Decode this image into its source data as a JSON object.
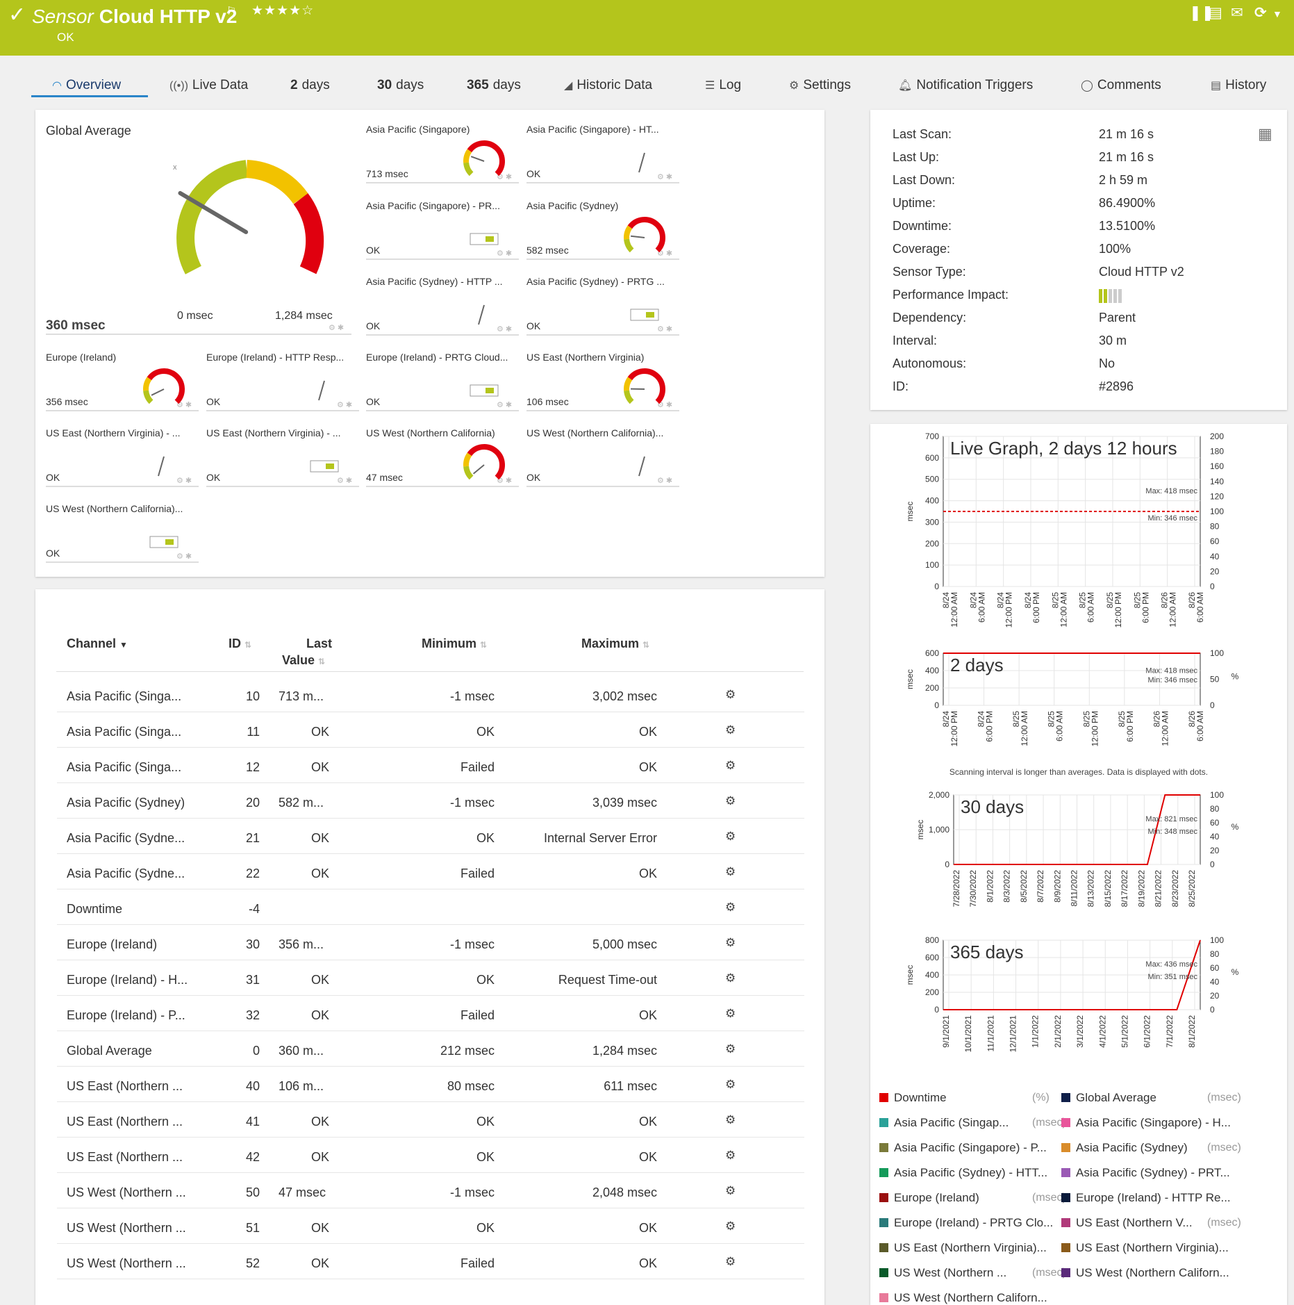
{
  "header": {
    "label": "Sensor",
    "title": "Cloud HTTP v2",
    "status": "OK",
    "stars": "★★★★☆",
    "accent": "#b4c51c"
  },
  "tabs": [
    {
      "label": "Overview",
      "icon": "gauge-icon"
    },
    {
      "label": "Live Data",
      "icon": "broadcast-icon"
    },
    {
      "num": "2",
      "label": "days"
    },
    {
      "num": "30",
      "label": "days"
    },
    {
      "num": "365",
      "label": "days"
    },
    {
      "label": "Historic Data",
      "icon": "area-chart-icon"
    },
    {
      "label": "Log",
      "icon": "list-icon"
    },
    {
      "label": "Settings",
      "icon": "gear-icon"
    },
    {
      "label": "Notification Triggers",
      "icon": "bell-icon"
    },
    {
      "label": "Comments",
      "icon": "comment-icon"
    },
    {
      "label": "History",
      "icon": "history-icon"
    }
  ],
  "global": {
    "title": "Global Average",
    "value": "360 msec",
    "min_label": "0 msec",
    "max_label": "1,284 msec",
    "level": 0.28
  },
  "gauges": [
    {
      "title": "Asia Pacific (Singapore)",
      "value": "713 msec",
      "kind": "gauge",
      "level": 0.24
    },
    {
      "title": "Asia Pacific (Singapore) - HT...",
      "value": "OK",
      "kind": "line"
    },
    {
      "title": "Asia Pacific (Singapore) - PR...",
      "value": "OK",
      "kind": "toggle"
    },
    {
      "title": "Asia Pacific (Sydney)",
      "value": "582 msec",
      "kind": "gauge",
      "level": 0.19
    },
    {
      "title": "Asia Pacific (Sydney) - HTTP ...",
      "value": "OK",
      "kind": "line"
    },
    {
      "title": "Asia Pacific (Sydney) - PRTG ...",
      "value": "OK",
      "kind": "toggle"
    },
    {
      "title": "Europe (Ireland)",
      "value": "356 msec",
      "kind": "gauge",
      "level": 0.07
    },
    {
      "title": "Europe (Ireland) - HTTP Resp...",
      "value": "OK",
      "kind": "line"
    },
    {
      "title": "Europe (Ireland) - PRTG Cloud...",
      "value": "OK",
      "kind": "toggle"
    },
    {
      "title": "US East (Northern Virginia)",
      "value": "106 msec",
      "kind": "gauge",
      "level": 0.17
    },
    {
      "title": "US East (Northern Virginia) - ...",
      "value": "OK",
      "kind": "line"
    },
    {
      "title": "US East (Northern Virginia) - ...",
      "value": "OK",
      "kind": "toggle"
    },
    {
      "title": "US West (Northern California)",
      "value": "47 msec",
      "kind": "gauge",
      "level": 0.02
    },
    {
      "title": "US West (Northern California)...",
      "value": "OK",
      "kind": "line"
    },
    {
      "title": "US West (Northern California)...",
      "value": "OK",
      "kind": "toggle"
    }
  ],
  "table": {
    "headers": {
      "channel": "Channel",
      "id": "ID",
      "last": "Last",
      "value": "Value",
      "min": "Minimum",
      "max": "Maximum"
    },
    "rows": [
      {
        "channel": "Asia Pacific (Singa...",
        "id": "10",
        "last": "713 m...",
        "min": "-1 msec",
        "max": "3,002 msec"
      },
      {
        "channel": "Asia Pacific (Singa...",
        "id": "11",
        "last": "OK",
        "min": "OK",
        "max": "OK"
      },
      {
        "channel": "Asia Pacific (Singa...",
        "id": "12",
        "last": "OK",
        "min": "Failed",
        "max": "OK"
      },
      {
        "channel": "Asia Pacific (Sydney)",
        "id": "20",
        "last": "582 m...",
        "min": "-1 msec",
        "max": "3,039 msec"
      },
      {
        "channel": "Asia Pacific (Sydne...",
        "id": "21",
        "last": "OK",
        "min": "OK",
        "max": "Internal Server Error"
      },
      {
        "channel": "Asia Pacific (Sydne...",
        "id": "22",
        "last": "OK",
        "min": "Failed",
        "max": "OK"
      },
      {
        "channel": "Downtime",
        "id": "-4",
        "last": "",
        "min": "",
        "max": ""
      },
      {
        "channel": "Europe (Ireland)",
        "id": "30",
        "last": "356 m...",
        "min": "-1 msec",
        "max": "5,000 msec"
      },
      {
        "channel": "Europe (Ireland) - H...",
        "id": "31",
        "last": "OK",
        "min": "OK",
        "max": "Request Time-out"
      },
      {
        "channel": "Europe (Ireland) - P...",
        "id": "32",
        "last": "OK",
        "min": "Failed",
        "max": "OK"
      },
      {
        "channel": "Global Average",
        "id": "0",
        "last": "360 m...",
        "min": "212 msec",
        "max": "1,284 msec"
      },
      {
        "channel": "US East (Northern ...",
        "id": "40",
        "last": "106 m...",
        "min": "80 msec",
        "max": "611 msec"
      },
      {
        "channel": "US East (Northern ...",
        "id": "41",
        "last": "OK",
        "min": "OK",
        "max": "OK"
      },
      {
        "channel": "US East (Northern ...",
        "id": "42",
        "last": "OK",
        "min": "OK",
        "max": "OK"
      },
      {
        "channel": "US West (Northern ...",
        "id": "50",
        "last": "47 msec",
        "min": "-1 msec",
        "max": "2,048 msec"
      },
      {
        "channel": "US West (Northern ...",
        "id": "51",
        "last": "OK",
        "min": "OK",
        "max": "OK"
      },
      {
        "channel": "US West (Northern ...",
        "id": "52",
        "last": "OK",
        "min": "Failed",
        "max": "OK"
      }
    ]
  },
  "details": [
    {
      "label": "Last Scan:",
      "value": "21 m 16 s"
    },
    {
      "label": "Last Up:",
      "value": "21 m 16 s"
    },
    {
      "label": "Last Down:",
      "value": "2 h 59 m"
    },
    {
      "label": "Uptime:",
      "value": "86.4900%"
    },
    {
      "label": "Downtime:",
      "value": "13.5100%"
    },
    {
      "label": "Coverage:",
      "value": "100%"
    },
    {
      "label": "Sensor Type:",
      "value": "Cloud HTTP v2"
    },
    {
      "label": "Performance Impact:",
      "value": ""
    },
    {
      "label": "Dependency:",
      "value": "Parent"
    },
    {
      "label": "Interval:",
      "value": "30 m"
    },
    {
      "label": "Autonomous:",
      "value": "No"
    },
    {
      "label": "ID:",
      "value": "#2896"
    }
  ],
  "chart_data": [
    {
      "type": "line",
      "title": "Live Graph, 2 days 12 hours",
      "ylabel": "msec",
      "ylim": [
        0,
        700
      ],
      "yticks": [
        "700",
        "600",
        "500",
        "400",
        "300",
        "200",
        "100",
        "0"
      ],
      "y2lim": [
        0,
        200
      ],
      "y2ticks": [
        "200",
        "180",
        "160",
        "140",
        "120",
        "100",
        "80",
        "60",
        "40",
        "20",
        "0"
      ],
      "xticks": [
        "8/24 12:00 AM",
        "8/24 6:00 AM",
        "8/24 12:00 PM",
        "8/24 6:00 PM",
        "8/25 12:00 AM",
        "8/25 6:00 AM",
        "8/25 12:00 PM",
        "8/25 6:00 PM",
        "8/26 12:00 AM",
        "8/26 6:00 AM"
      ],
      "annotations": [
        "Max: 418 msec",
        "Min: 346 msec"
      ],
      "series": [
        {
          "name": "Downtime",
          "values": [
            100,
            100
          ]
        }
      ]
    },
    {
      "type": "line",
      "title": "2 days",
      "ylabel": "msec",
      "ylim": [
        0,
        600
      ],
      "yticks": [
        "600",
        "400",
        "200",
        "0"
      ],
      "y2lim": [
        0,
        100
      ],
      "y2ticks": [
        "100",
        "50",
        "0"
      ],
      "y2label": "%",
      "xticks": [
        "8/24 12:00 PM",
        "8/24 6:00 PM",
        "8/25 12:00 AM",
        "8/25 6:00 AM",
        "8/25 12:00 PM",
        "8/25 6:00 PM",
        "8/26 12:00 AM",
        "8/26 6:00 AM"
      ],
      "annotations": [
        "Max: 418 msec",
        "Min: 346 msec"
      ],
      "note": "Scanning interval is longer than averages. Data is displayed with dots.",
      "series": [
        {
          "name": "Downtime",
          "values": [
            100,
            100
          ]
        }
      ]
    },
    {
      "type": "line",
      "title": "30 days",
      "ylabel": "msec",
      "ylim": [
        0,
        2000
      ],
      "yticks": [
        "2,000",
        "1,000",
        "0"
      ],
      "y2lim": [
        0,
        100
      ],
      "y2ticks": [
        "100",
        "80",
        "60",
        "40",
        "20",
        "0"
      ],
      "y2label": "%",
      "xticks": [
        "7/28/2022",
        "7/30/2022",
        "8/1/2022",
        "8/3/2022",
        "8/5/2022",
        "8/7/2022",
        "8/9/2022",
        "8/11/2022",
        "8/13/2022",
        "8/15/2022",
        "8/17/2022",
        "8/19/2022",
        "8/21/2022",
        "8/23/2022",
        "8/25/2022"
      ],
      "annotations": [
        "Max: 821 msec",
        "Min: 348 msec"
      ],
      "series": [
        {
          "name": "Downtime",
          "values": [
            0,
            0,
            0,
            0,
            0,
            0,
            0,
            0,
            0,
            0,
            0,
            0,
            100,
            100,
            100
          ]
        }
      ]
    },
    {
      "type": "line",
      "title": "365 days",
      "ylabel": "msec",
      "ylim": [
        0,
        800
      ],
      "yticks": [
        "800",
        "600",
        "400",
        "200",
        "0"
      ],
      "y2lim": [
        0,
        100
      ],
      "y2ticks": [
        "100",
        "80",
        "60",
        "40",
        "20",
        "0"
      ],
      "y2label": "%",
      "xticks": [
        "9/1/2021",
        "10/1/2021",
        "11/1/2021",
        "12/1/2021",
        "1/1/2022",
        "2/1/2022",
        "3/1/2022",
        "4/1/2022",
        "5/1/2022",
        "6/1/2022",
        "7/1/2022",
        "8/1/2022"
      ],
      "annotations": [
        "Max: 436 msec",
        "Min: 351 msec"
      ],
      "series": [
        {
          "name": "Downtime",
          "values": [
            0,
            0,
            0,
            0,
            0,
            0,
            0,
            0,
            0,
            0,
            0,
            100
          ]
        }
      ]
    }
  ],
  "legend": [
    {
      "name": "Downtime",
      "unit": "(%)",
      "color": "#e00000"
    },
    {
      "name": "Global Average",
      "unit": "(msec)",
      "color": "#10204a"
    },
    {
      "name": "Asia Pacific (Singap...",
      "unit": "(msec)",
      "color": "#2aa198"
    },
    {
      "name": "Asia Pacific (Singapore) - H...",
      "unit": "",
      "color": "#e8559a"
    },
    {
      "name": "Asia Pacific (Singapore) - P...",
      "unit": "",
      "color": "#7a7a3a"
    },
    {
      "name": "Asia Pacific (Sydney)",
      "unit": "(msec)",
      "color": "#d98c2b"
    },
    {
      "name": "Asia Pacific (Sydney) - HTT...",
      "unit": "",
      "color": "#149a5a"
    },
    {
      "name": "Asia Pacific (Sydney) - PRT...",
      "unit": "",
      "color": "#9a5ab5"
    },
    {
      "name": "Europe (Ireland)",
      "unit": "(msec)",
      "color": "#9a1010"
    },
    {
      "name": "Europe (Ireland) - HTTP Re...",
      "unit": "",
      "color": "#0a1a3a"
    },
    {
      "name": "Europe (Ireland) - PRTG Clo...",
      "unit": "",
      "color": "#2a7a7a"
    },
    {
      "name": "US East (Northern V...",
      "unit": "(msec)",
      "color": "#b03a7a"
    },
    {
      "name": "US East (Northern Virginia)...",
      "unit": "",
      "color": "#5a5a2a"
    },
    {
      "name": "US East (Northern Virginia)...",
      "unit": "",
      "color": "#8a5a1a"
    },
    {
      "name": "US West (Northern ...",
      "unit": "(msec)",
      "color": "#0a5a2a"
    },
    {
      "name": "US West (Northern Californ...",
      "unit": "",
      "color": "#5a2a7a"
    },
    {
      "name": "US West (Northern Californ...",
      "unit": "",
      "color": "#e87a9a"
    }
  ]
}
